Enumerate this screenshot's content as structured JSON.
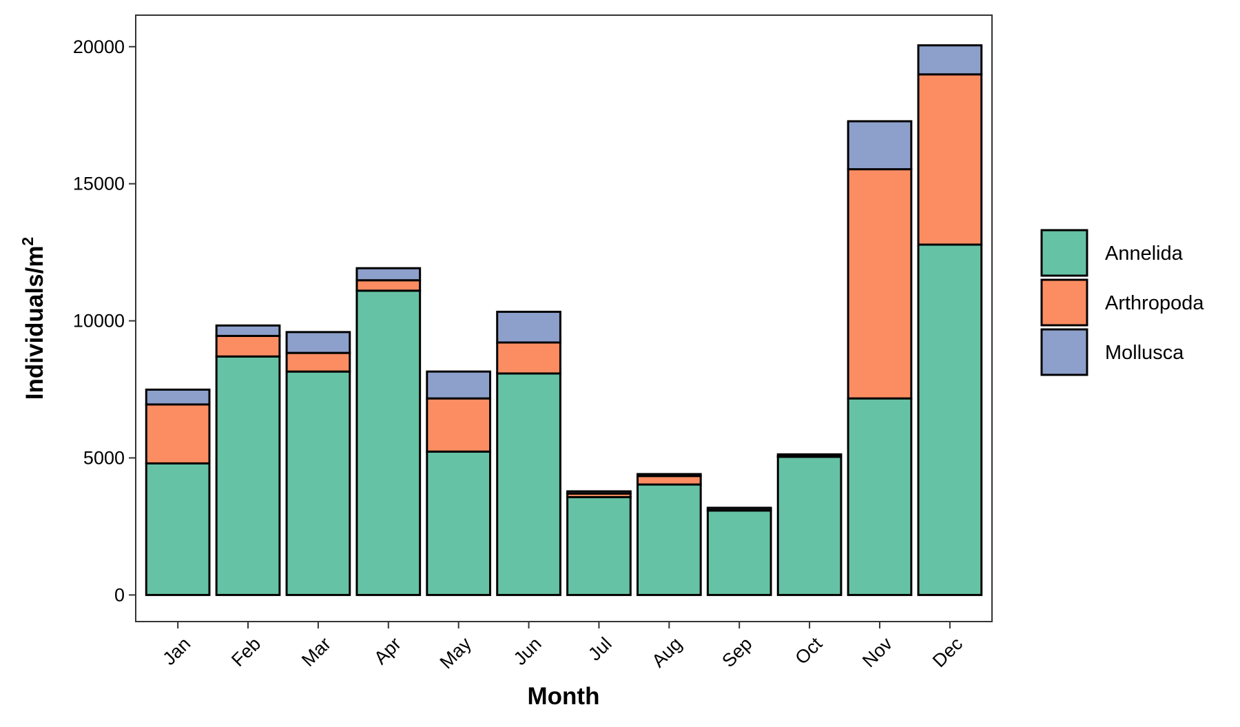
{
  "chart_data": {
    "type": "bar",
    "stacked": true,
    "xlabel": "Month",
    "ylabel": "Individuals/m",
    "ylabel_superscript": "2",
    "categories": [
      "Jan",
      "Feb",
      "Mar",
      "Apr",
      "May",
      "Jun",
      "Jul",
      "Aug",
      "Sep",
      "Oct",
      "Nov",
      "Dec"
    ],
    "series": [
      {
        "name": "Annelida",
        "color": "#66C2A5",
        "values": [
          4800,
          8700,
          8150,
          11100,
          5230,
          8080,
          3570,
          4030,
          3080,
          5040,
          7170,
          12780
        ]
      },
      {
        "name": "Arthropoda",
        "color": "#FC8D62",
        "values": [
          2150,
          750,
          680,
          380,
          1940,
          1130,
          130,
          310,
          20,
          20,
          8360,
          6210
        ]
      },
      {
        "name": "Mollusca",
        "color": "#8DA0CB",
        "values": [
          540,
          380,
          760,
          440,
          980,
          1120,
          80,
          70,
          80,
          70,
          1750,
          1060
        ]
      }
    ],
    "yticks": [
      0,
      5000,
      10000,
      15000,
      20000
    ],
    "ylim": [
      -970,
      21150
    ],
    "grid": false,
    "legend_position": "right"
  }
}
